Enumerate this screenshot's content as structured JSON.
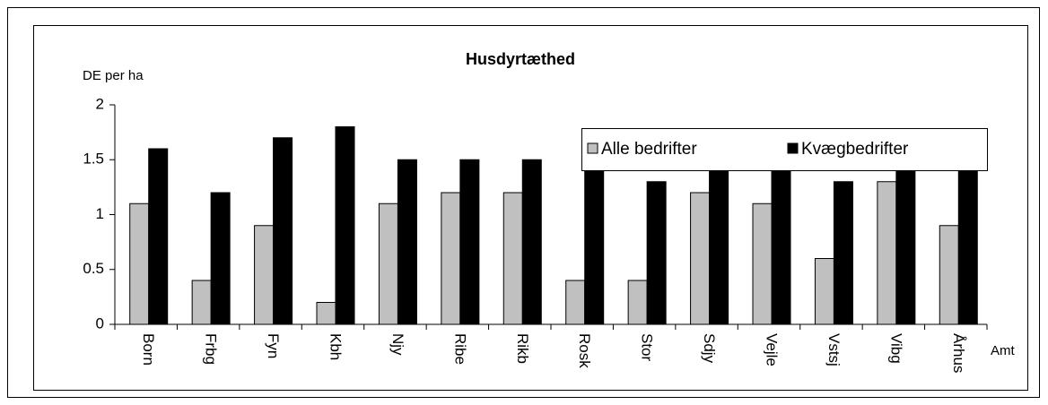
{
  "chart_data": {
    "type": "bar",
    "title": "Husdyrtæthed",
    "y_label": "DE per ha",
    "x_label": "Amt",
    "categories": [
      "Born",
      "Frbg",
      "Fyn",
      "Kbh",
      "Njy",
      "Ribe",
      "Rikb",
      "Rosk",
      "Stor",
      "Sdjy",
      "Vejle",
      "Vstsj",
      "Vibg",
      "Århus"
    ],
    "series": [
      {
        "name": "Alle bedrifter",
        "color": "#c0c0c0",
        "values": [
          1.1,
          0.4,
          0.9,
          0.2,
          1.1,
          1.2,
          1.2,
          0.4,
          0.4,
          1.2,
          1.1,
          0.6,
          1.3,
          0.9
        ]
      },
      {
        "name": "Kvægbedrifter",
        "color": "#000000",
        "values": [
          1.6,
          1.2,
          1.7,
          1.8,
          1.5,
          1.5,
          1.5,
          1.4,
          1.3,
          1.4,
          1.5,
          1.3,
          1.5,
          1.4
        ]
      }
    ],
    "ylim": [
      0,
      2
    ],
    "yticks": [
      0,
      0.5,
      1,
      1.5,
      2
    ],
    "grid": false,
    "legend": "top-right"
  }
}
